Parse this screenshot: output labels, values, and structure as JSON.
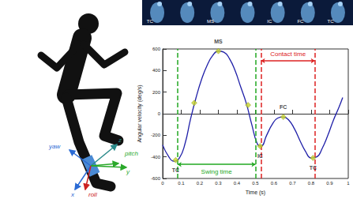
{
  "chart_data": {
    "type": "line",
    "xlabel": "Time (s)",
    "ylabel": "Angular velocity (deg/s)",
    "color": "#1f1fa8",
    "x": [
      0,
      0.03,
      0.06,
      0.09,
      0.12,
      0.15,
      0.18,
      0.21,
      0.24,
      0.27,
      0.3,
      0.33,
      0.36,
      0.39,
      0.42,
      0.45,
      0.48,
      0.51,
      0.53,
      0.56,
      0.59,
      0.62,
      0.65,
      0.68,
      0.71,
      0.74,
      0.77,
      0.8,
      0.83,
      0.86,
      0.89,
      0.92,
      0.95,
      0.97
    ],
    "values": [
      -290,
      -390,
      -440,
      -410,
      -280,
      -50,
      150,
      320,
      450,
      540,
      580,
      570,
      510,
      400,
      250,
      100,
      -100,
      -280,
      -300,
      -200,
      -100,
      -40,
      -30,
      -60,
      -140,
      -250,
      -350,
      -410,
      -400,
      -320,
      -200,
      -60,
      60,
      150
    ],
    "xlim": [
      0,
      1
    ],
    "xticks": [
      0,
      0.1,
      0.2,
      0.3,
      0.4,
      0.5,
      0.6,
      0.7,
      0.8,
      0.9,
      1
    ],
    "ylim": [
      -600,
      600
    ],
    "yticks": [
      -600,
      -400,
      -200,
      0,
      200,
      400,
      600
    ],
    "grid": false,
    "events": {
      "x": [
        0.07,
        0.17,
        0.3,
        0.46,
        0.525,
        0.65,
        0.81
      ],
      "y": [
        -430,
        100,
        580,
        80,
        -300,
        -30,
        -410
      ],
      "labels": [
        "TC",
        null,
        "MS",
        null,
        "IC",
        "FC",
        "TC"
      ],
      "color": "#c8d42a"
    },
    "vlines": [
      {
        "x": 0.08,
        "color": "#22a822"
      },
      {
        "x": 0.5,
        "color": "#22a822"
      },
      {
        "x": 0.53,
        "color": "#dd2222"
      },
      {
        "x": 0.82,
        "color": "#dd2222"
      }
    ],
    "intervals": [
      {
        "label": "Swing time",
        "from": 0.08,
        "to": 0.5,
        "y": -470,
        "color": "#22a822"
      },
      {
        "label": "Contact time",
        "from": 0.53,
        "to": 0.82,
        "y": 490,
        "color": "#dd2222"
      }
    ]
  },
  "illustration": {
    "sensor_axes": [
      {
        "label": "z",
        "color": "#2a8a8a"
      },
      {
        "label": "pitch",
        "color": "#2aa82a"
      },
      {
        "label": "yaw",
        "color": "#2a6ad4"
      },
      {
        "label": "y",
        "color": "#2aa82a"
      },
      {
        "label": "x",
        "color": "#2a6ad4"
      },
      {
        "label": "roll",
        "color": "#cc2222"
      }
    ],
    "phase_strip": [
      "TC",
      "MS",
      "IC",
      "FC",
      "TC"
    ]
  }
}
